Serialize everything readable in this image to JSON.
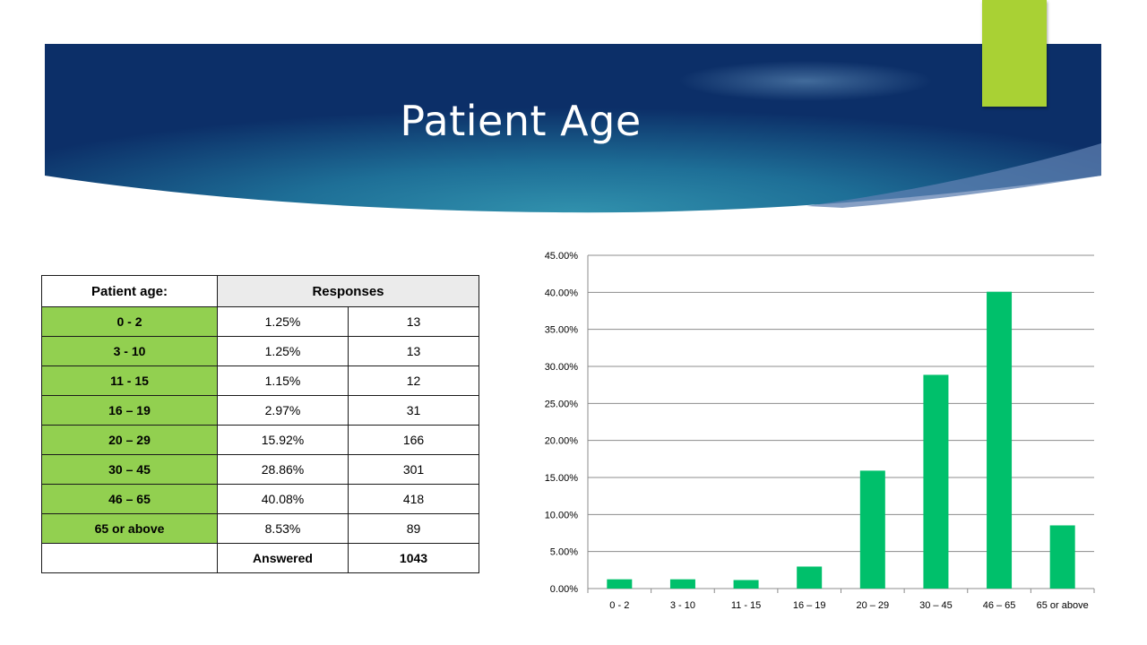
{
  "slide": {
    "title": "Patient Age",
    "accent_color": "#a9d134",
    "banner_colors": [
      "#0e2f66",
      "#2e88a5"
    ]
  },
  "table": {
    "header": {
      "label": "Patient age:",
      "responses": "Responses"
    },
    "rows": [
      {
        "label": "0 - 2",
        "percent": "1.25%",
        "count": "13"
      },
      {
        "label": "3 - 10",
        "percent": "1.25%",
        "count": "13"
      },
      {
        "label": "11 - 15",
        "percent": "1.15%",
        "count": "12"
      },
      {
        "label": "16 – 19",
        "percent": "2.97%",
        "count": "31"
      },
      {
        "label": "20 – 29",
        "percent": "15.92%",
        "count": "166"
      },
      {
        "label": "30 – 45",
        "percent": "28.86%",
        "count": "301"
      },
      {
        "label": "46 – 65",
        "percent": "40.08%",
        "count": "418"
      },
      {
        "label": "65 or above",
        "percent": "8.53%",
        "count": "89"
      }
    ],
    "footer": {
      "label": "Answered",
      "total": "1043"
    },
    "label_color": "#92d050",
    "header_color": "#ebebeb"
  },
  "chart_data": {
    "type": "bar",
    "categories": [
      "0 - 2",
      "3 - 10",
      "11 - 15",
      "16 – 19",
      "20 – 29",
      "30 – 45",
      "46 – 65",
      "65 or above"
    ],
    "values": [
      1.25,
      1.25,
      1.15,
      2.97,
      15.92,
      28.86,
      40.08,
      8.53
    ],
    "ylim": [
      0,
      45
    ],
    "yticks": [
      "0.00%",
      "5.00%",
      "10.00%",
      "15.00%",
      "20.00%",
      "25.00%",
      "30.00%",
      "35.00%",
      "40.00%",
      "45.00%"
    ],
    "grid": true,
    "legend": false,
    "bar_color": "#00c06b",
    "title": "",
    "xlabel": "",
    "ylabel": ""
  }
}
